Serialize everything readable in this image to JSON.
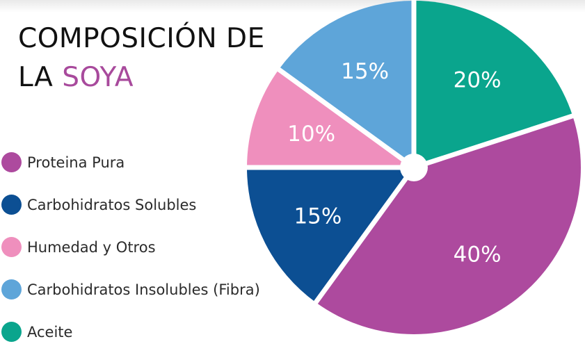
{
  "title": {
    "line1": "COMPOSICIÓN DE",
    "line2_prefix": "LA ",
    "line2_accent": "SOYA"
  },
  "colors": {
    "title_accent": "#a84a9c",
    "separator": "#ffffff"
  },
  "chart_data": {
    "type": "pie",
    "title": "COMPOSICIÓN DE LA SOYA",
    "legend_position": "left",
    "slices": [
      {
        "name": "Aceite",
        "value": 20,
        "label": "20%",
        "color": "#0aa58d"
      },
      {
        "name": "Proteina Pura",
        "value": 40,
        "label": "40%",
        "color": "#ad4a9e"
      },
      {
        "name": "Carbohidratos Solubles",
        "value": 15,
        "label": "15%",
        "color": "#0c4f93"
      },
      {
        "name": "Humedad y Otros",
        "value": 10,
        "label": "10%",
        "color": "#ef8fbd"
      },
      {
        "name": "Carbohidratos Insolubles (Fibra)",
        "value": 15,
        "label": "15%",
        "color": "#5ea5d9"
      }
    ],
    "legend": [
      {
        "name": "Proteina Pura",
        "color": "#ad4a9e"
      },
      {
        "name": "Carbohidratos Solubles",
        "color": "#0c4f93"
      },
      {
        "name": "Humedad y Otros",
        "color": "#ef8fbd"
      },
      {
        "name": "Carbohidratos Insolubles (Fibra)",
        "color": "#5ea5d9"
      },
      {
        "name": "Aceite",
        "color": "#0aa58d"
      }
    ]
  }
}
